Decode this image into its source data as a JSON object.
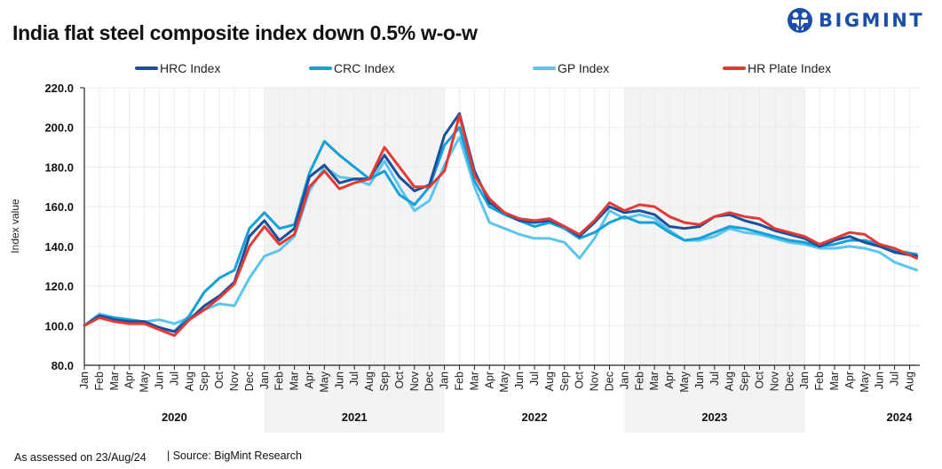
{
  "header": {
    "title": "India flat steel composite index down 0.5% w-o-w",
    "brand": "BIGMINT"
  },
  "footer": {
    "assessed": "As assessed on 23/Aug/24",
    "source": "| Source: BigMint Research"
  },
  "colors": {
    "hrc": "#1a4f9c",
    "crc": "#14a0d8",
    "gp": "#5bc5ef",
    "hrplate": "#e53935",
    "band": "#f3f3f3",
    "grid": "#ebebeb",
    "brand": "#1a4ea8"
  },
  "chart_data": {
    "type": "line",
    "title": "India flat steel composite index down 0.5% w-o-w",
    "xlabel": "",
    "ylabel": "Index value",
    "ylim": [
      80,
      220
    ],
    "yticks": [
      "80.0",
      "100.0",
      "120.0",
      "140.0",
      "160.0",
      "180.0",
      "200.0",
      "220.0"
    ],
    "legend_position": "top",
    "grid": true,
    "years": [
      {
        "label": "2020",
        "shaded": false
      },
      {
        "label": "2021",
        "shaded": true
      },
      {
        "label": "2022",
        "shaded": false
      },
      {
        "label": "2023",
        "shaded": true
      },
      {
        "label": "2024",
        "shaded": false
      }
    ],
    "month_labels": [
      "Jan",
      "Feb",
      "Mar",
      "Apr",
      "May",
      "Jun",
      "Jul",
      "Aug",
      "Sep",
      "Oct",
      "Nov",
      "Dec"
    ],
    "x_description": "Monthly points from Jan 2020 to Aug 2024 (index 0 = Jan 2020)",
    "series": [
      {
        "name": "HRC Index",
        "key": "hrc",
        "values": [
          100,
          105,
          103,
          102,
          102,
          99,
          97,
          103,
          110,
          115,
          122,
          145,
          153,
          143,
          149,
          175,
          181,
          172,
          174,
          174,
          186,
          175,
          168,
          171,
          196,
          207,
          178,
          162,
          157,
          153,
          152,
          153,
          150,
          145,
          152,
          160,
          157,
          158,
          156,
          150,
          149,
          150,
          155,
          156,
          153,
          151,
          148,
          146,
          144,
          140,
          143,
          145,
          142,
          140,
          137,
          135
        ]
      },
      {
        "name": "CRC Index",
        "key": "crc",
        "values": [
          100,
          105,
          104,
          103,
          102,
          99,
          97,
          105,
          117,
          124,
          128,
          149,
          157,
          149,
          151,
          177,
          193,
          186,
          180,
          174,
          178,
          166,
          161,
          170,
          191,
          200,
          173,
          160,
          156,
          153,
          150,
          152,
          149,
          144,
          147,
          152,
          155,
          152,
          152,
          147,
          143,
          144,
          147,
          150,
          149,
          147,
          145,
          143,
          142,
          140,
          141,
          143,
          143,
          141,
          138,
          136
        ]
      },
      {
        "name": "GP Index",
        "key": "gp",
        "values": [
          100,
          106,
          104,
          103,
          102,
          103,
          101,
          104,
          108,
          111,
          110,
          124,
          135,
          138,
          145,
          168,
          180,
          175,
          174,
          171,
          183,
          170,
          158,
          163,
          181,
          195,
          170,
          152,
          149,
          146,
          144,
          144,
          142,
          134,
          144,
          158,
          154,
          156,
          154,
          148,
          143,
          143,
          145,
          149,
          147,
          146,
          144,
          142,
          141,
          139,
          139,
          140,
          139,
          137,
          132,
          128
        ]
      },
      {
        "name": "HR Plate Index",
        "key": "hrplate",
        "values": [
          100,
          104,
          102,
          101,
          101,
          98,
          95,
          103,
          108,
          114,
          121,
          140,
          150,
          141,
          146,
          170,
          178,
          169,
          172,
          174,
          190,
          180,
          170,
          170,
          178,
          206,
          176,
          164,
          157,
          154,
          153,
          154,
          150,
          146,
          153,
          162,
          158,
          161,
          160,
          155,
          152,
          151,
          155,
          157,
          155,
          154,
          149,
          147,
          145,
          141,
          144,
          147,
          146,
          141,
          139,
          134
        ]
      }
    ]
  },
  "legend": [
    {
      "label": "HRC Index",
      "key": "hrc"
    },
    {
      "label": "CRC Index",
      "key": "crc"
    },
    {
      "label": "GP Index",
      "key": "gp"
    },
    {
      "label": "HR Plate Index",
      "key": "hrplate"
    }
  ]
}
